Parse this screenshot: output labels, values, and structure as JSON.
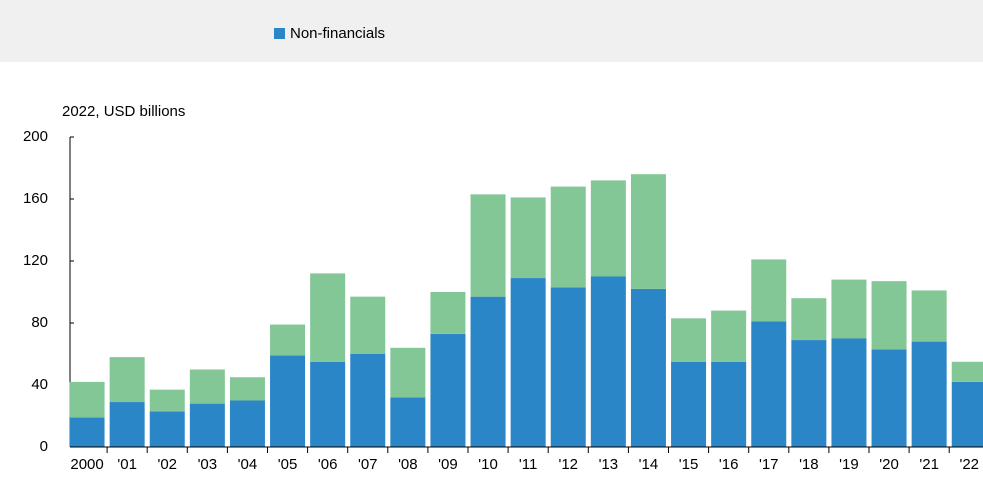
{
  "chart_data": {
    "type": "stacked_bar",
    "legend_title": "Non-financials",
    "y_label": "2022, USD billions",
    "categories": [
      "2000",
      "'01",
      "'02",
      "'03",
      "'04",
      "'05",
      "'06",
      "'07",
      "'08",
      "'09",
      "'10",
      "'11",
      "'12",
      "'13",
      "'14",
      "'15",
      "'16",
      "'17",
      "'18",
      "'19",
      "'20",
      "'21",
      "'22"
    ],
    "series": [
      {
        "name": "Non-financials",
        "color": "#2b86c8",
        "values": [
          19,
          29,
          23,
          28,
          30,
          59,
          55,
          60,
          32,
          73,
          97,
          109,
          103,
          110,
          102,
          55,
          55,
          81,
          69,
          70,
          63,
          68,
          42
        ]
      },
      {
        "color": "#82c795",
        "values": [
          23,
          29,
          14,
          22,
          15,
          20,
          57,
          37,
          32,
          27,
          66,
          52,
          65,
          62,
          74,
          28,
          33,
          40,
          27,
          38,
          44,
          33,
          13
        ]
      }
    ],
    "ylim": [
      0,
      200
    ],
    "yticks": [
      0,
      40,
      80,
      120,
      160,
      200
    ]
  }
}
